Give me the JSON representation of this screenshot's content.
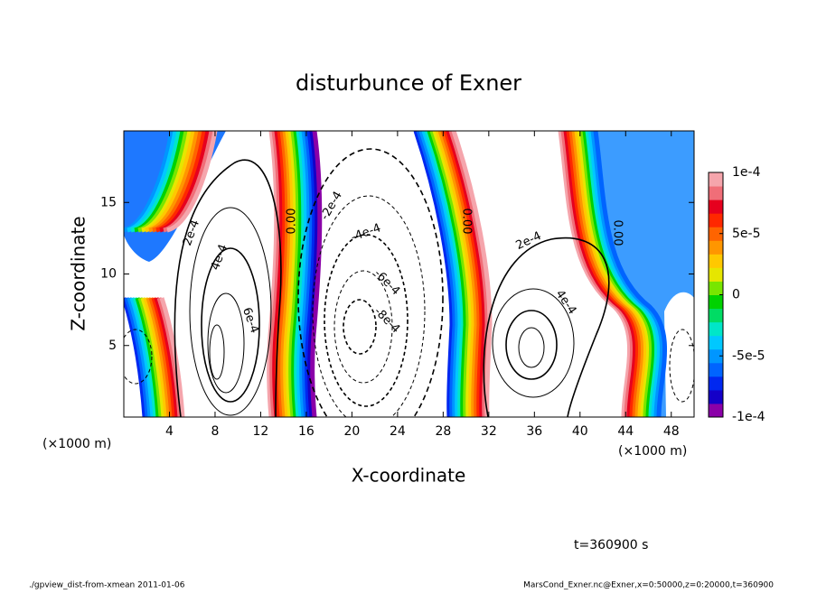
{
  "chart_data": {
    "type": "contour",
    "title": "disturbunce of Exner",
    "xlabel": "X-coordinate",
    "ylabel": "Z-coordinate",
    "x_unit_left": "(×1000 m)",
    "x_unit_right": "(×1000 m)",
    "xlim": [
      0,
      50
    ],
    "xticks": [
      4,
      8,
      12,
      16,
      20,
      24,
      28,
      32,
      36,
      40,
      44,
      48
    ],
    "ylim": [
      0,
      20
    ],
    "yticks": [
      5,
      10,
      15
    ],
    "colorbar": {
      "lim": [
        -0.0001,
        0.0001
      ],
      "ticks": [
        {
          "value": 0.0001,
          "label": "1e-4"
        },
        {
          "value": 5e-05,
          "label": "5e-5"
        },
        0,
        {
          "value": -5e-05,
          "label": "-5e-5"
        },
        {
          "value": -0.0001,
          "label": "-1e-4"
        }
      ],
      "colors": [
        "#8a00a8",
        "#1400c8",
        "#0028f0",
        "#0064ff",
        "#0096ff",
        "#00c8ff",
        "#00e6c8",
        "#00dc64",
        "#00d200",
        "#78e600",
        "#e6e600",
        "#ffc800",
        "#ff9600",
        "#ff6400",
        "#ff2800",
        "#e6001e",
        "#f06e78",
        "#f5a5ac"
      ]
    },
    "contour_labels": [
      "2e-4",
      "4e-4",
      "6e-4",
      "0.00",
      "-2e-4",
      "-4e-4",
      "-6e-4",
      "-8e-4",
      "0.00",
      "2e-4",
      "4e-4",
      "0.00"
    ],
    "time_label": "t=360900 s",
    "footer_left": "./gpview_dist-from-xmean  2011-01-06",
    "footer_right": "MarsCond_Exner.nc@Exner,x=0:50000,z=0:20000,t=360900"
  }
}
